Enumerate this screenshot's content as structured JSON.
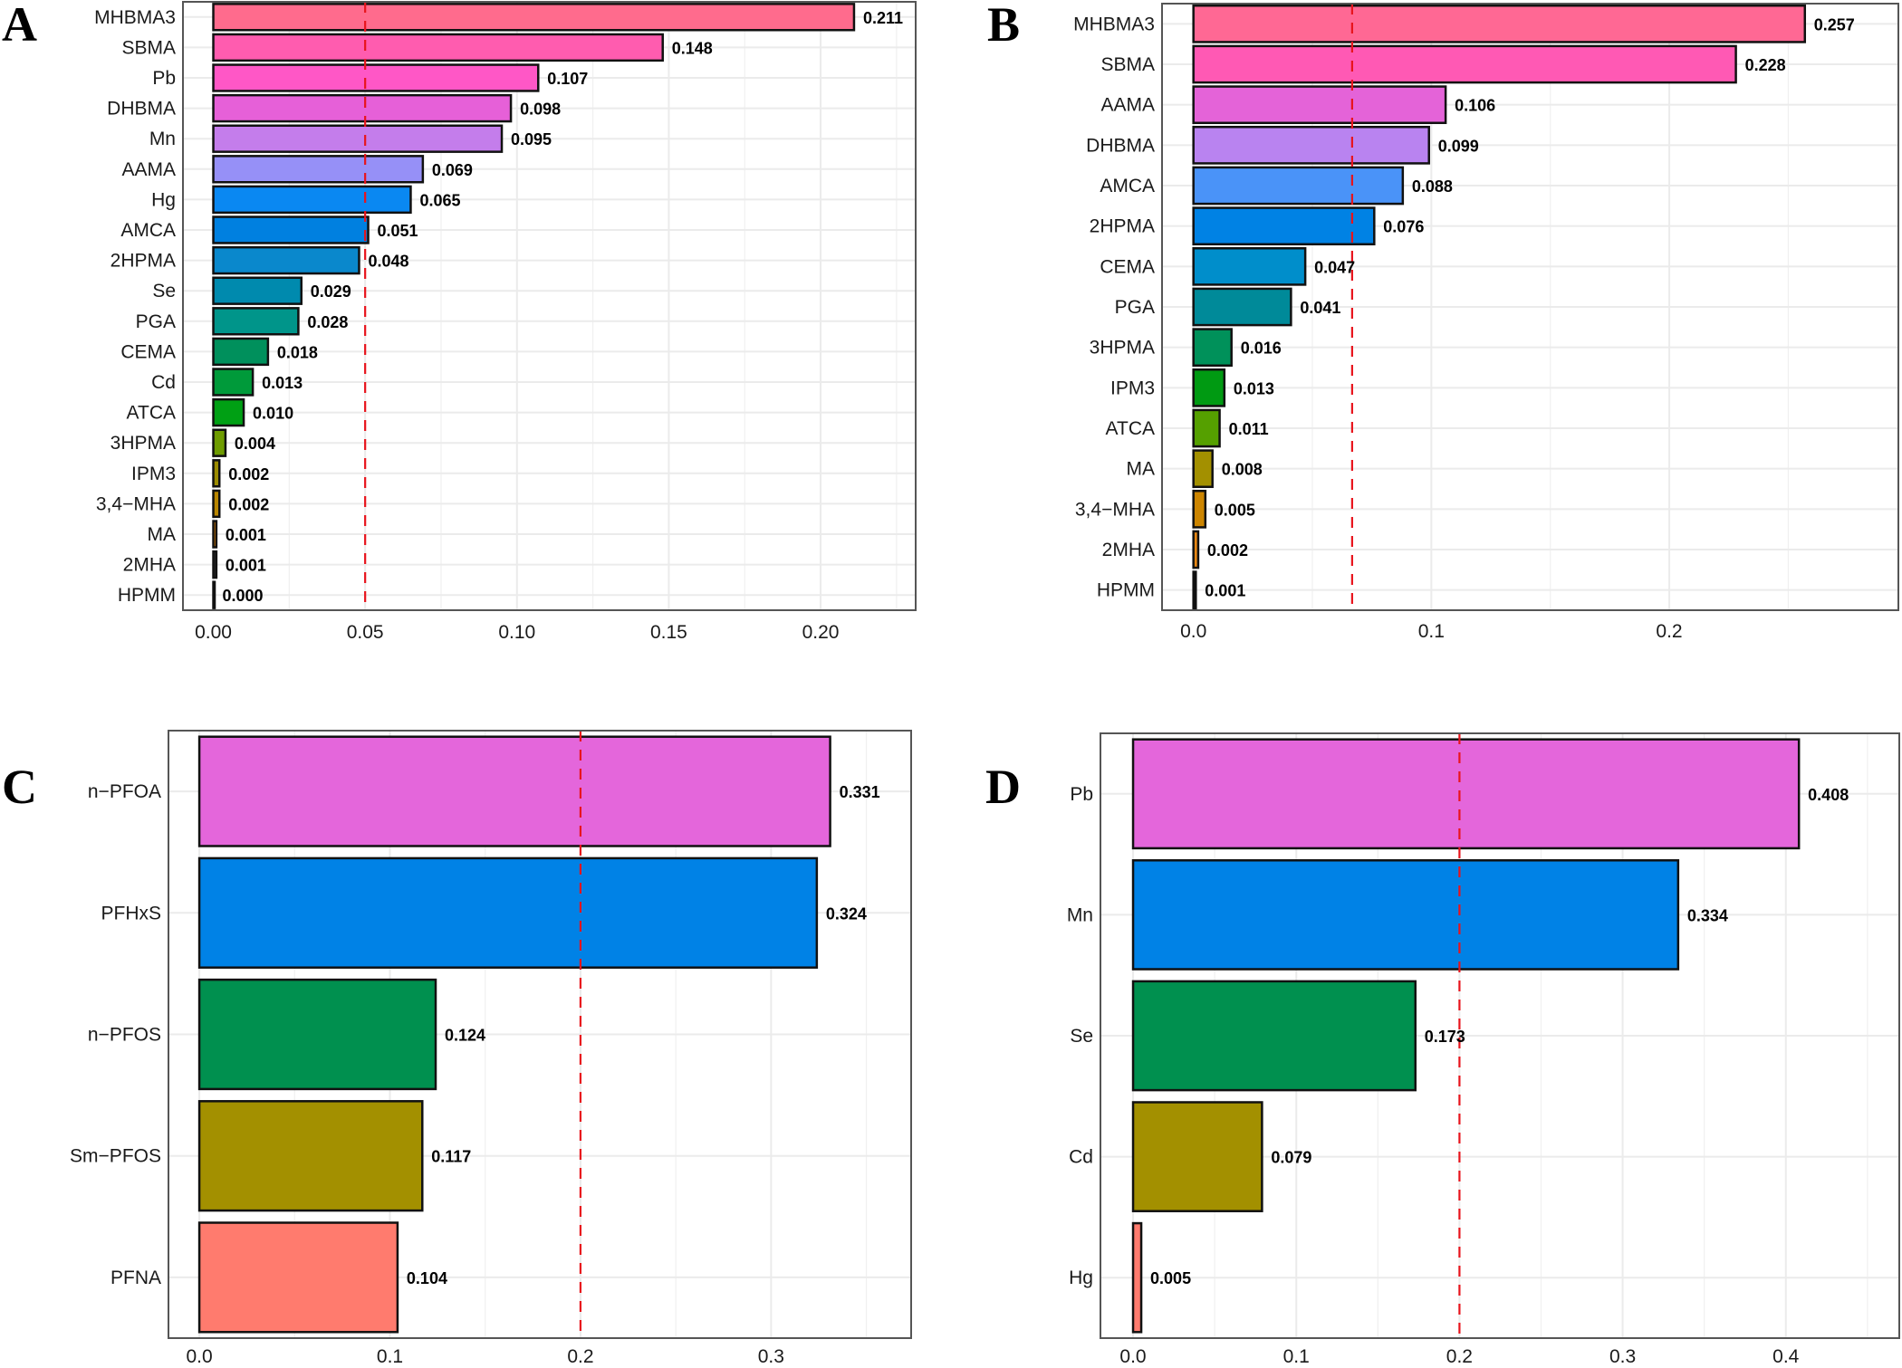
{
  "chart_data": [
    {
      "type": "bar",
      "orientation": "horizontal",
      "panel_label": "A",
      "title": "",
      "xlabel": "",
      "ylabel": "",
      "categories": [
        "MHBMA3",
        "SBMA",
        "Pb",
        "DHBMA",
        "Mn",
        "AAMA",
        "Hg",
        "AMCA",
        "2HPMA",
        "Se",
        "PGA",
        "CEMA",
        "Cd",
        "ATCA",
        "3HPMA",
        "IPM3",
        "3,4−MHA",
        "MA",
        "2MHA",
        "HPMM"
      ],
      "values": [
        0.211,
        0.148,
        0.107,
        0.098,
        0.095,
        0.069,
        0.065,
        0.051,
        0.048,
        0.029,
        0.028,
        0.018,
        0.013,
        0.01,
        0.004,
        0.002,
        0.002,
        0.001,
        0.001,
        0.0
      ],
      "value_labels": [
        "0.211",
        "0.148",
        "0.107",
        "0.098",
        "0.095",
        "0.069",
        "0.065",
        "0.051",
        "0.048",
        "0.029",
        "0.028",
        "0.018",
        "0.013",
        "0.010",
        "0.004",
        "0.002",
        "0.002",
        "0.001",
        "0.001",
        "0.000"
      ],
      "colors": [
        "#FF6B8D",
        "#FF5CAF",
        "#FF57C6",
        "#E660D8",
        "#C47DEB",
        "#9690F7",
        "#0A88F2",
        "#0080E0",
        "#0A88CC",
        "#008AAE",
        "#00958A",
        "#00905C",
        "#009A3A",
        "#00A014",
        "#6E9C00",
        "#9C8C00",
        "#B98600",
        "#D07A00",
        "#2A2A2A",
        "#111111"
      ],
      "xticks": [
        0.0,
        0.05,
        0.1,
        0.15,
        0.2
      ],
      "xtick_labels": [
        "0.00",
        "0.05",
        "0.10",
        "0.15",
        "0.20"
      ],
      "xlim": [
        -0.01,
        0.2313
      ],
      "reference_line": 0.05,
      "grid": true
    },
    {
      "type": "bar",
      "orientation": "horizontal",
      "panel_label": "B",
      "title": "",
      "xlabel": "",
      "ylabel": "",
      "categories": [
        "MHBMA3",
        "SBMA",
        "AAMA",
        "DHBMA",
        "AMCA",
        "2HPMA",
        "CEMA",
        "PGA",
        "3HPMA",
        "IPM3",
        "ATCA",
        "MA",
        "3,4−MHA",
        "2MHA",
        "HPMM"
      ],
      "values": [
        0.257,
        0.228,
        0.106,
        0.099,
        0.088,
        0.076,
        0.047,
        0.041,
        0.016,
        0.013,
        0.011,
        0.008,
        0.005,
        0.002,
        0.001
      ],
      "value_labels": [
        "0.257",
        "0.228",
        "0.106",
        "0.099",
        "0.088",
        "0.076",
        "0.047",
        "0.041",
        "0.016",
        "0.013",
        "0.011",
        "0.008",
        "0.005",
        "0.002",
        "0.001"
      ],
      "colors": [
        "#FF6894",
        "#FF59B4",
        "#E463D8",
        "#B983F0",
        "#4A93F8",
        "#0082E4",
        "#008ECB",
        "#008A99",
        "#00915A",
        "#009A12",
        "#55A000",
        "#A39000",
        "#CC8500",
        "#E68613",
        "#111111"
      ],
      "xticks": [
        0.0,
        0.1,
        0.2
      ],
      "xtick_labels": [
        "0.0",
        "0.1",
        "0.2"
      ],
      "xlim": [
        -0.0132,
        0.2963
      ],
      "reference_line": 0.0667,
      "grid": true
    },
    {
      "type": "bar",
      "orientation": "horizontal",
      "panel_label": "C",
      "title": "",
      "xlabel": "",
      "ylabel": "",
      "categories": [
        "n−PFOA",
        "PFHxS",
        "n−PFOS",
        "Sm−PFOS",
        "PFNA"
      ],
      "values": [
        0.331,
        0.324,
        0.124,
        0.117,
        0.104
      ],
      "value_labels": [
        "0.331",
        "0.324",
        "0.124",
        "0.117",
        "0.104"
      ],
      "colors": [
        "#E466DB",
        "#0082E6",
        "#00904F",
        "#A39000",
        "#FF7B6E"
      ],
      "xticks": [
        0.0,
        0.1,
        0.2,
        0.3
      ],
      "xtick_labels": [
        "0.0",
        "0.1",
        "0.2",
        "0.3"
      ],
      "xlim": [
        -0.0162,
        0.3735
      ],
      "reference_line": 0.2,
      "grid": true
    },
    {
      "type": "bar",
      "orientation": "horizontal",
      "panel_label": "D",
      "title": "",
      "xlabel": "",
      "ylabel": "",
      "categories": [
        "Pb",
        "Mn",
        "Se",
        "Cd",
        "Hg"
      ],
      "values": [
        0.408,
        0.334,
        0.173,
        0.079,
        0.005
      ],
      "value_labels": [
        "0.408",
        "0.334",
        "0.173",
        "0.079",
        "0.005"
      ],
      "colors": [
        "#E466DB",
        "#0082E6",
        "#00904F",
        "#A39000",
        "#FF7B6E"
      ],
      "xticks": [
        0.0,
        0.1,
        0.2,
        0.3,
        0.4
      ],
      "xtick_labels": [
        "0.0",
        "0.1",
        "0.2",
        "0.3",
        "0.4"
      ],
      "xlim": [
        -0.02,
        0.4695
      ],
      "reference_line": 0.2,
      "grid": true
    }
  ]
}
